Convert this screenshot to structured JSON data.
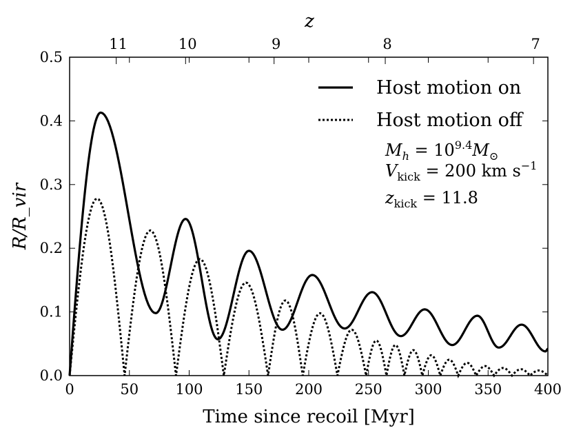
{
  "chart_data": {
    "type": "line",
    "xlabel": "Time since recoil [Myr]",
    "ylabel": "R/R_vir",
    "top_axis_label": "z",
    "xlim": [
      0,
      400
    ],
    "ylim": [
      0.0,
      0.5
    ],
    "x_ticks": [
      0,
      50,
      100,
      150,
      200,
      250,
      300,
      350,
      400
    ],
    "x_tick_labels": [
      "0",
      "50",
      "100",
      "150",
      "200",
      "250",
      "300",
      "350",
      "400"
    ],
    "y_ticks": [
      0.0,
      0.1,
      0.2,
      0.3,
      0.4,
      0.5
    ],
    "y_tick_labels": [
      "0.0",
      "0.1",
      "0.2",
      "0.3",
      "0.4",
      "0.5"
    ],
    "top_ticks": [
      {
        "z": "11",
        "time": 39
      },
      {
        "z": "10",
        "time": 97
      },
      {
        "z": "9",
        "time": 171
      },
      {
        "z": "8",
        "time": 264
      },
      {
        "z": "7",
        "time": 388
      }
    ],
    "legend": {
      "position": "top-right",
      "entries": [
        {
          "label": "Host motion on",
          "style": "solid"
        },
        {
          "label": "Host motion off",
          "style": "dotted"
        }
      ]
    },
    "annotations": [
      {
        "base": "M",
        "sub": "h",
        "text": " = 10",
        "sup": "9.4",
        "after": "M",
        "after_sub": "⊙"
      },
      {
        "base": "V",
        "sub": "kick",
        "text": " = 200 km s",
        "sup": "−1"
      },
      {
        "base": "z",
        "sub": "kick",
        "text": " = 11.8"
      }
    ],
    "series": [
      {
        "name": "Host motion on",
        "style": "solid",
        "peaks": [
          [
            26,
            0.413
          ],
          [
            97,
            0.246
          ],
          [
            150,
            0.196
          ],
          [
            203,
            0.158
          ],
          [
            253,
            0.131
          ],
          [
            297,
            0.104
          ],
          [
            341,
            0.094
          ],
          [
            378,
            0.08
          ]
        ],
        "troughs": [
          [
            0,
            0.0
          ],
          [
            72,
            0.098
          ],
          [
            124,
            0.057
          ],
          [
            178,
            0.072
          ],
          [
            230,
            0.074
          ],
          [
            277,
            0.062
          ],
          [
            320,
            0.048
          ],
          [
            359,
            0.044
          ],
          [
            398,
            0.038
          ]
        ],
        "end": [
          400,
          0.042
        ]
      },
      {
        "name": "Host motion off",
        "style": "dotted",
        "arches": [
          [
            0,
            46,
            0.278
          ],
          [
            46,
            89,
            0.228
          ],
          [
            89,
            129,
            0.183
          ],
          [
            129,
            166,
            0.146
          ],
          [
            166,
            195,
            0.118
          ],
          [
            195,
            224,
            0.098
          ],
          [
            224,
            248,
            0.072
          ],
          [
            248,
            265,
            0.055
          ],
          [
            265,
            280,
            0.048
          ],
          [
            280,
            295,
            0.04
          ],
          [
            295,
            310,
            0.032
          ],
          [
            310,
            325,
            0.025
          ],
          [
            325,
            340,
            0.02
          ],
          [
            340,
            355,
            0.015
          ],
          [
            355,
            370,
            0.012
          ],
          [
            370,
            385,
            0.01
          ],
          [
            385,
            400,
            0.008
          ]
        ]
      }
    ]
  }
}
